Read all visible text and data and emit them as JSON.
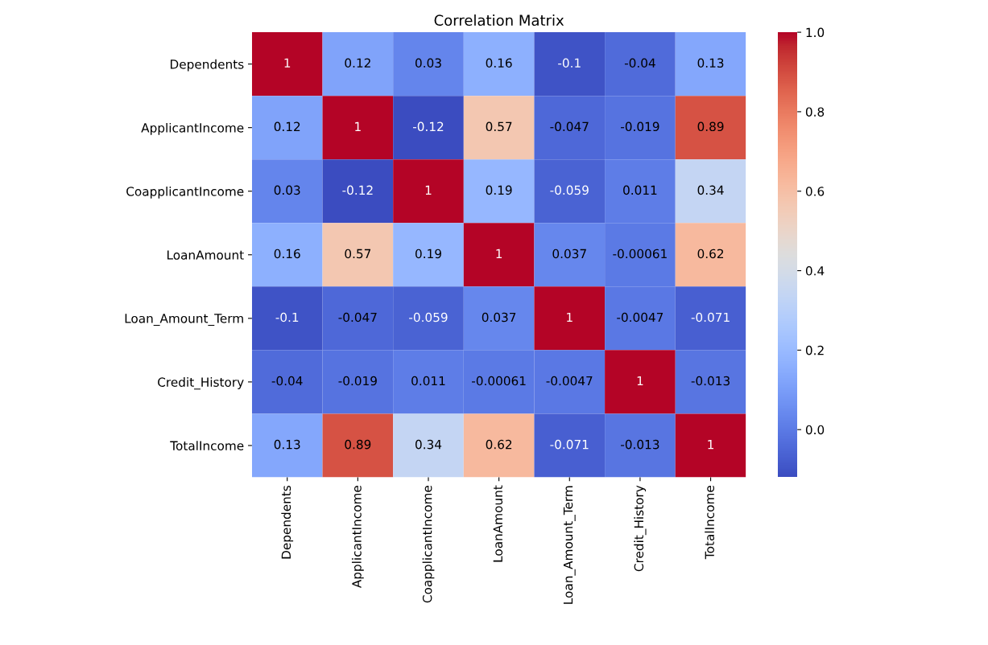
{
  "chart_data": {
    "type": "heatmap",
    "title": "Correlation Matrix",
    "categories": [
      "Dependents",
      "ApplicantIncome",
      "CoapplicantIncome",
      "LoanAmount",
      "Loan_Amount_Term",
      "Credit_History",
      "TotalIncome"
    ],
    "y_categories": [
      "Dependents",
      "ApplicantIncome",
      "CoapplicantIncome",
      "LoanAmount",
      "Loan_Amount_Term",
      "Credit_History",
      "TotalIncome"
    ],
    "cells": [
      [
        1,
        0.12,
        0.03,
        0.16,
        -0.1,
        -0.04,
        0.13
      ],
      [
        0.12,
        1,
        -0.12,
        0.57,
        -0.047,
        -0.019,
        0.89
      ],
      [
        0.03,
        -0.12,
        1,
        0.19,
        -0.059,
        0.011,
        0.34
      ],
      [
        0.16,
        0.57,
        0.19,
        1,
        0.037,
        -0.00061,
        0.62
      ],
      [
        -0.1,
        -0.047,
        -0.059,
        0.037,
        1,
        -0.0047,
        -0.071
      ],
      [
        -0.04,
        -0.019,
        0.011,
        -0.00061,
        -0.0047,
        1,
        -0.013
      ],
      [
        0.13,
        0.89,
        0.34,
        0.62,
        -0.071,
        -0.013,
        1
      ]
    ],
    "clim": [
      -0.12,
      1
    ],
    "cticks": [
      {
        "value": 0,
        "label": "0.0"
      },
      {
        "value": 0.2,
        "label": "0.2"
      },
      {
        "value": 0.4,
        "label": "0.4"
      },
      {
        "value": 0.6,
        "label": "0.6"
      },
      {
        "value": 0.8,
        "label": "0.8"
      },
      {
        "value": 1,
        "label": "1.0"
      }
    ],
    "data_labels": true
  }
}
